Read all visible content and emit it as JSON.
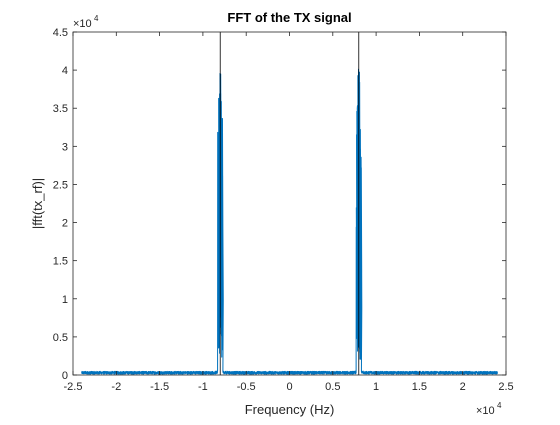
{
  "chart_data": {
    "type": "line",
    "title": "FFT of the TX signal",
    "xlabel": "Frequency (Hz)",
    "ylabel": "|fft(tx_rf)|",
    "xlim": [
      -25000,
      25000
    ],
    "ylim": [
      0,
      45000
    ],
    "x_exponent_label": "×10",
    "x_exponent_power": "4",
    "y_exponent_label": "×10",
    "y_exponent_power": "4",
    "xticks": [
      -25000,
      -20000,
      -15000,
      -10000,
      -5000,
      0,
      5000,
      10000,
      15000,
      20000,
      25000
    ],
    "xtick_labels": [
      "-2.5",
      "-2",
      "-1.5",
      "-1",
      "-0.5",
      "0",
      "0.5",
      "1",
      "1.5",
      "2",
      "2.5"
    ],
    "yticks": [
      0,
      5000,
      10000,
      15000,
      20000,
      25000,
      30000,
      35000,
      40000,
      45000
    ],
    "ytick_labels": [
      "0",
      "0.5",
      "1",
      "1.5",
      "2",
      "2.5",
      "3",
      "3.5",
      "4",
      "4.5"
    ],
    "grid": false,
    "series_color": "#0072BD",
    "series": [
      {
        "x_range": [
          -24000,
          24000
        ],
        "peaks": [
          {
            "center": -8000,
            "max": 40200,
            "width": 600
          },
          {
            "center": 8000,
            "max": 40200,
            "width": 600
          }
        ],
        "noise_floor": 400
      }
    ],
    "vertical_lines": [
      -8000,
      8000
    ]
  }
}
